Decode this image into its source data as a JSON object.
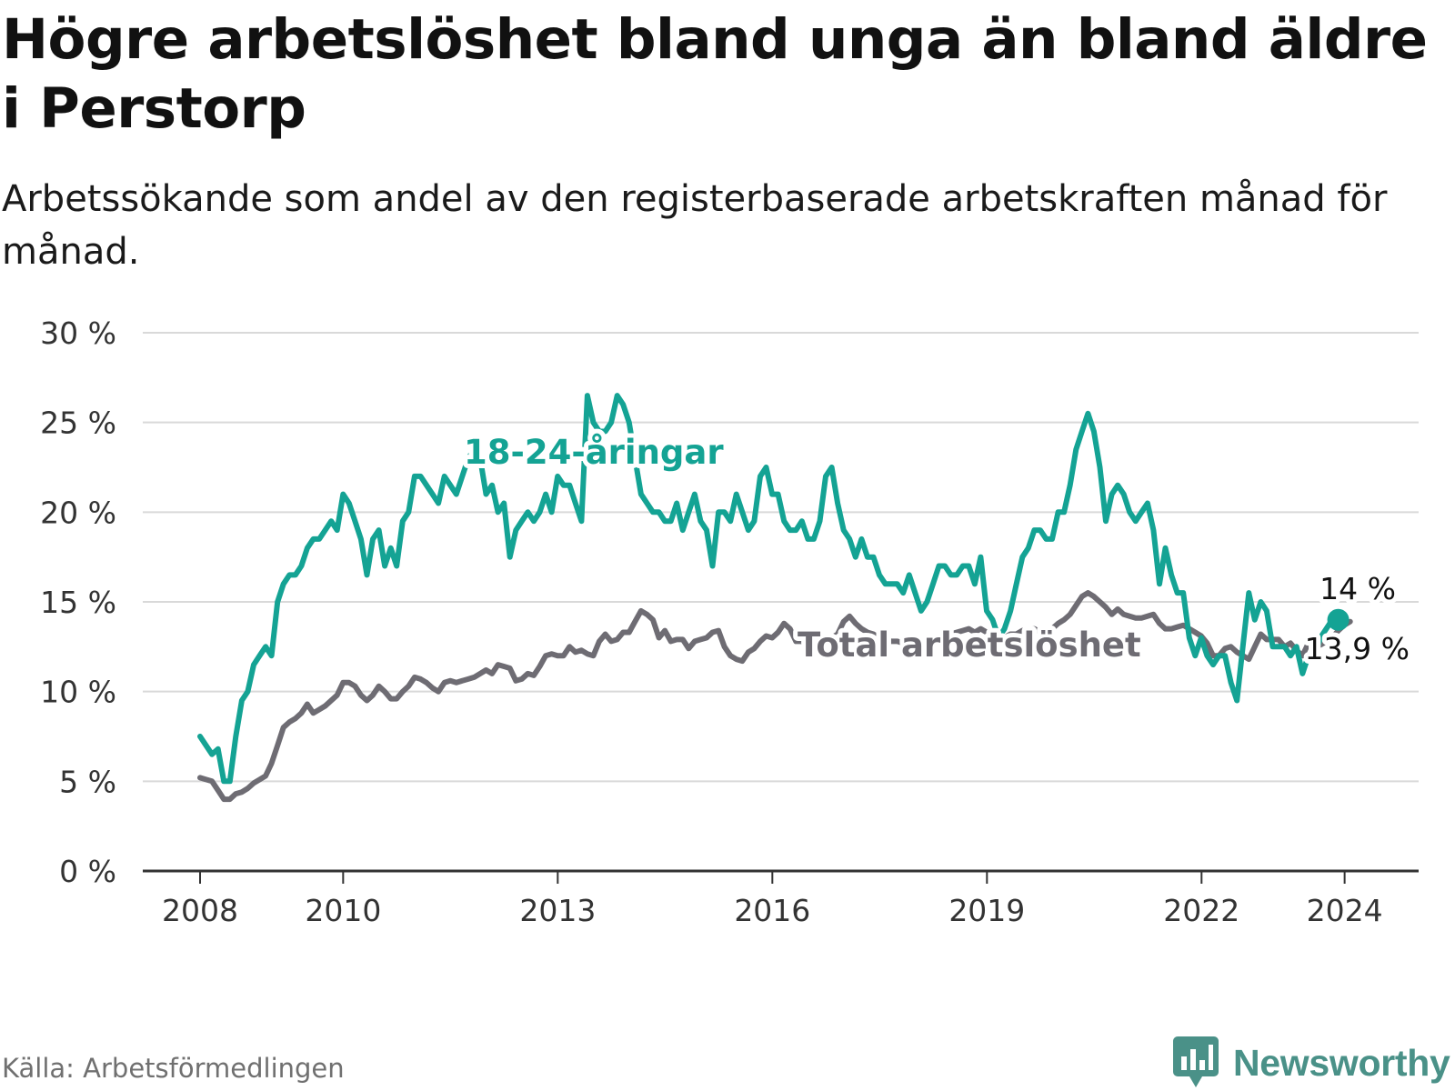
{
  "title": "Högre arbetslöshet bland unga än bland äldre i Perstorp",
  "subtitle": "Arbetssökande som andel av den registerbaserade arbetskraften månad för månad.",
  "source": "Källa: Arbetsförmedlingen",
  "brand": "Newsworthy",
  "colors": {
    "youth": "#14a394",
    "total": "#6e6c73",
    "grid": "#d9d9d9",
    "axis": "#333333",
    "brand": "#4a9188"
  },
  "chart_data": {
    "type": "line",
    "title": "Högre arbetslöshet bland unga än bland äldre i Perstorp",
    "xlabel": "",
    "ylabel": "",
    "xlim": [
      2008.0,
      2024.17
    ],
    "ylim": [
      0,
      30
    ],
    "y_ticks": [
      0,
      5,
      10,
      15,
      20,
      25,
      30
    ],
    "y_tick_labels": [
      "0 %",
      "5 %",
      "10 %",
      "15 %",
      "20 %",
      "25 %",
      "30 %"
    ],
    "x_ticks": [
      2008,
      2010,
      2013,
      2016,
      2019,
      2022,
      2024
    ],
    "x_tick_labels": [
      "2008",
      "2010",
      "2013",
      "2016",
      "2019",
      "2022",
      "2024"
    ],
    "grid": true,
    "series": [
      {
        "name": "18-24-åringar",
        "label": "18-24-åringar",
        "last_value_label": "14 %",
        "x_start": 2008.0,
        "step": 0.0833,
        "values": [
          7.5,
          7.0,
          6.5,
          6.8,
          5.0,
          5.0,
          7.5,
          9.5,
          10.0,
          11.5,
          12.0,
          12.5,
          12.0,
          15.0,
          16.0,
          16.5,
          16.5,
          17.0,
          18.0,
          18.5,
          18.5,
          19.0,
          19.5,
          19.0,
          21.0,
          20.5,
          19.5,
          18.5,
          16.5,
          18.5,
          19.0,
          17.0,
          18.0,
          17.0,
          19.5,
          20.0,
          22.0,
          22.0,
          21.5,
          21.0,
          20.5,
          22.0,
          21.5,
          21.0,
          22.0,
          23.0,
          23.5,
          23.0,
          21.0,
          21.5,
          20.0,
          20.5,
          17.5,
          19.0,
          19.5,
          20.0,
          19.5,
          20.0,
          21.0,
          20.0,
          22.0,
          21.5,
          21.5,
          20.5,
          19.5,
          26.5,
          25.0,
          24.5,
          24.5,
          25.0,
          26.5,
          26.0,
          25.0,
          23.0,
          21.0,
          20.5,
          20.0,
          20.0,
          19.5,
          19.5,
          20.5,
          19.0,
          20.0,
          21.0,
          19.5,
          19.0,
          17.0,
          20.0,
          20.0,
          19.5,
          21.0,
          20.0,
          19.0,
          19.5,
          22.0,
          22.5,
          21.0,
          21.0,
          19.5,
          19.0,
          19.0,
          19.5,
          18.5,
          18.5,
          19.5,
          22.0,
          22.5,
          20.5,
          19.0,
          18.5,
          17.5,
          18.5,
          17.5,
          17.5,
          16.5,
          16.0,
          16.0,
          16.0,
          15.5,
          16.5,
          15.5,
          14.5,
          15.0,
          16.0,
          17.0,
          17.0,
          16.5,
          16.5,
          17.0,
          17.0,
          16.0,
          17.5,
          14.5,
          14.0,
          13.0,
          13.5,
          14.5,
          16.0,
          17.5,
          18.0,
          19.0,
          19.0,
          18.5,
          18.5,
          20.0,
          20.0,
          21.5,
          23.5,
          24.5,
          25.5,
          24.5,
          22.5,
          19.5,
          21.0,
          21.5,
          21.0,
          20.0,
          19.5,
          20.0,
          20.5,
          19.0,
          16.0,
          18.0,
          16.5,
          15.5,
          15.5,
          13.0,
          12.0,
          13.0,
          12.0,
          11.5,
          12.0,
          12.0,
          10.5,
          9.5,
          12.5,
          15.5,
          14.0,
          15.0,
          14.5,
          12.5,
          12.5,
          12.5,
          12.0,
          12.5,
          11.0,
          12.0,
          12.0,
          13.0,
          13.5,
          14.0,
          14.0
        ]
      },
      {
        "name": "Total arbetslöshet",
        "label": "Total arbetslöshet",
        "last_value_label": "13,9 %",
        "x_start": 2008.0,
        "step": 0.0833,
        "values": [
          5.2,
          5.1,
          5.0,
          4.5,
          4.0,
          4.0,
          4.3,
          4.4,
          4.6,
          4.9,
          5.1,
          5.3,
          6.0,
          7.0,
          8.0,
          8.3,
          8.5,
          8.8,
          9.3,
          8.8,
          9.0,
          9.2,
          9.5,
          9.8,
          10.5,
          10.5,
          10.3,
          9.8,
          9.5,
          9.8,
          10.3,
          10.0,
          9.6,
          9.6,
          10.0,
          10.3,
          10.8,
          10.7,
          10.5,
          10.2,
          10.0,
          10.5,
          10.6,
          10.5,
          10.6,
          10.7,
          10.8,
          11.0,
          11.2,
          11.0,
          11.5,
          11.4,
          11.3,
          10.6,
          10.7,
          11.0,
          10.9,
          11.4,
          12.0,
          12.1,
          12.0,
          12.0,
          12.5,
          12.2,
          12.3,
          12.1,
          12.0,
          12.8,
          13.2,
          12.8,
          12.9,
          13.3,
          13.3,
          13.9,
          14.5,
          14.3,
          14.0,
          13.0,
          13.4,
          12.8,
          12.9,
          12.9,
          12.4,
          12.8,
          12.9,
          13.0,
          13.3,
          13.4,
          12.5,
          12.0,
          11.8,
          11.7,
          12.2,
          12.4,
          12.8,
          13.1,
          13.0,
          13.3,
          13.8,
          13.5,
          12.8,
          12.8,
          12.5,
          12.5,
          12.9,
          12.8,
          13.0,
          13.2,
          13.9,
          14.2,
          13.8,
          13.5,
          13.3,
          13.2,
          13.0,
          12.9,
          12.8,
          12.8,
          12.7,
          12.9,
          12.9,
          12.8,
          12.6,
          12.8,
          13.0,
          13.1,
          13.2,
          13.3,
          13.4,
          13.5,
          13.3,
          13.5,
          13.3,
          13.2,
          13.0,
          13.0,
          13.2,
          13.2,
          13.4,
          13.5,
          13.5,
          13.3,
          13.5,
          13.5,
          13.8,
          14.0,
          14.3,
          14.8,
          15.3,
          15.5,
          15.3,
          15.0,
          14.7,
          14.3,
          14.6,
          14.3,
          14.2,
          14.1,
          14.1,
          14.2,
          14.3,
          13.8,
          13.5,
          13.5,
          13.6,
          13.7,
          13.5,
          13.3,
          13.1,
          12.7,
          12.0,
          12.0,
          12.4,
          12.5,
          12.2,
          12.0,
          11.8,
          12.5,
          13.2,
          12.9,
          12.9,
          12.9,
          12.5,
          12.7,
          12.3,
          12.0,
          12.7,
          12.5,
          12.6,
          12.8,
          13.0,
          13.4,
          13.7,
          13.9
        ]
      }
    ],
    "annotations": [
      {
        "text": "18-24-åringar",
        "x": 2013.3,
        "y": 23.4,
        "series": "18-24-åringar"
      },
      {
        "text": "Total arbetslöshet",
        "x": 2018.6,
        "y": 12.6,
        "series": "Total arbetslöshet"
      },
      {
        "text": "14 %",
        "x": 2024.0,
        "y": 14.0,
        "series": "18-24-åringar"
      },
      {
        "text": "13,9 %",
        "x": 2024.0,
        "y": 13.9,
        "series": "Total arbetslöshet"
      }
    ]
  }
}
